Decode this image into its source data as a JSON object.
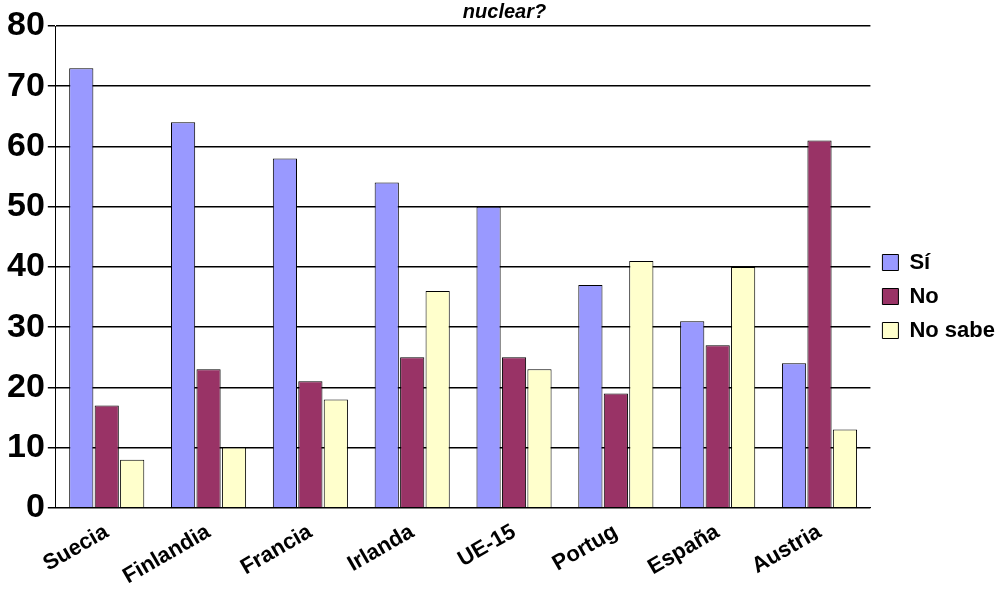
{
  "chart_data": {
    "type": "bar",
    "title": "nuclear?",
    "categories": [
      "Suecia",
      "Finlandia",
      "Francia",
      "Irlanda",
      "UE-15",
      "Portug",
      "España",
      "Austria"
    ],
    "series": [
      {
        "name": "Sí",
        "color": "#9999ff",
        "values": [
          73,
          64,
          58,
          54,
          50,
          37,
          31,
          24
        ]
      },
      {
        "name": "No",
        "color": "#993366",
        "values": [
          17,
          23,
          21,
          25,
          25,
          19,
          27,
          61
        ]
      },
      {
        "name": "No sabe",
        "color": "#ffffcc",
        "values": [
          8,
          10,
          18,
          36,
          23,
          41,
          40,
          13
        ]
      }
    ],
    "ylim": [
      0,
      80
    ],
    "yticks": [
      0,
      10,
      20,
      30,
      40,
      50,
      60,
      70,
      80
    ],
    "grid": "y",
    "legend": "right"
  }
}
